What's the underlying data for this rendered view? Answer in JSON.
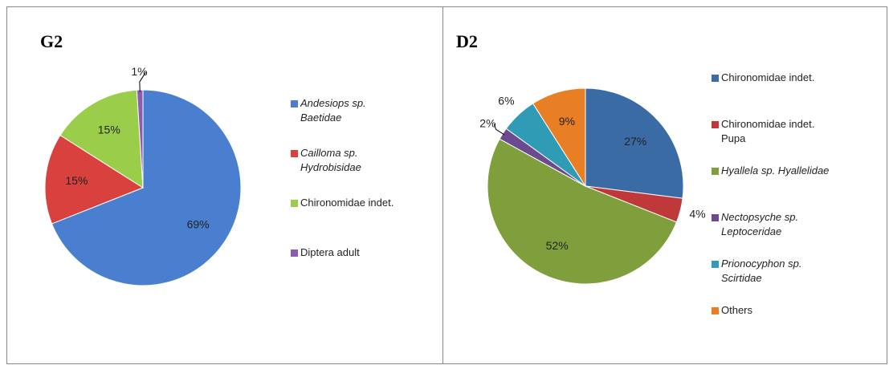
{
  "chart_data": [
    {
      "type": "pie",
      "title": "G2",
      "categories": [
        "Andesiops sp. Baetidae",
        "Cailloma sp. Hydrobisidae",
        "Chironomidae indet.",
        "Diptera adult"
      ],
      "italic": [
        true,
        true,
        false,
        false
      ],
      "values": [
        69,
        15,
        15,
        1
      ],
      "value_labels": [
        "69%",
        "15%",
        "15%",
        "1%"
      ],
      "colors": [
        "#4a7fd0",
        "#d9413f",
        "#9acd4a",
        "#8b5db0"
      ]
    },
    {
      "type": "pie",
      "title": "D2",
      "categories": [
        "Chironomidae indet.",
        "Chironomidae indet. Pupa",
        "Hyallela sp. Hyallelidae",
        "Nectopsyche sp. Leptoceridae",
        "Prionocyphon sp. Scirtidae",
        "Others"
      ],
      "italic": [
        false,
        false,
        true,
        true,
        true,
        false
      ],
      "values": [
        27,
        4,
        52,
        2,
        6,
        9
      ],
      "value_labels": [
        "27%",
        "4%",
        "52%",
        "2%",
        "6%",
        "9%"
      ],
      "colors": [
        "#3b6ba5",
        "#c0393a",
        "#7f9f3d",
        "#6b4a8f",
        "#2f9bb5",
        "#e87f25"
      ]
    }
  ]
}
